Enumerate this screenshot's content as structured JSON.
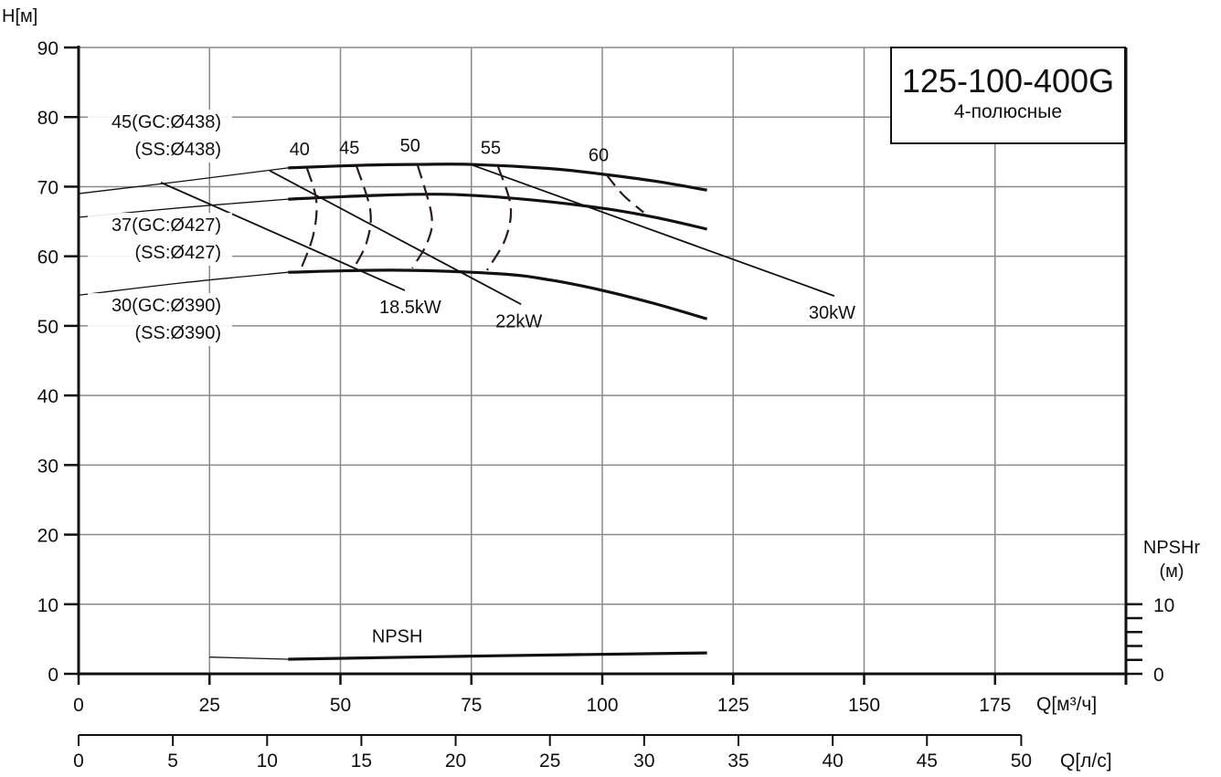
{
  "chart_data": {
    "type": "line",
    "title": "125-100-400G",
    "subtitle": "4-полюсные",
    "ylabel": "H[м]",
    "xlabel": "Q[м³/ч]",
    "x2label": "Q[л/с]",
    "y2label_line1": "NPSHr",
    "y2label_line2": "(м)",
    "xlim": [
      0,
      200
    ],
    "ylim": [
      0,
      90
    ],
    "x2lim": [
      0,
      50
    ],
    "y2lim": [
      0,
      10
    ],
    "grid": true,
    "x_ticks": [
      "0",
      "25",
      "50",
      "75",
      "100",
      "125",
      "150",
      "175"
    ],
    "y_ticks": [
      "0",
      "10",
      "20",
      "30",
      "40",
      "50",
      "60",
      "70",
      "80",
      "90"
    ],
    "x2_ticks": [
      "0",
      "5",
      "10",
      "15",
      "20",
      "25",
      "30",
      "35",
      "40",
      "45",
      "50"
    ],
    "y2_ticks": [
      "0",
      "10"
    ],
    "head_curves": [
      {
        "name": "45(GC:Ø438)",
        "name2": "(SS:Ø438)",
        "extension": [
          [
            0,
            69
          ],
          [
            20,
            70.8
          ],
          [
            40,
            72.7
          ]
        ],
        "points": [
          [
            40,
            72.7
          ],
          [
            55,
            73.1
          ],
          [
            65,
            73.2
          ],
          [
            75,
            73.2
          ],
          [
            90,
            72.6
          ],
          [
            100,
            71.8
          ],
          [
            110,
            70.8
          ],
          [
            120,
            69.5
          ]
        ]
      },
      {
        "name": "37(GC:Ø427)",
        "name2": "(SS:Ø427)",
        "extension": [
          [
            0,
            65.6
          ],
          [
            20,
            67
          ],
          [
            40,
            68.2
          ]
        ],
        "points": [
          [
            40,
            68.2
          ],
          [
            55,
            68.7
          ],
          [
            70,
            68.9
          ],
          [
            85,
            68.2
          ],
          [
            100,
            66.9
          ],
          [
            110,
            65.6
          ],
          [
            120,
            63.9
          ]
        ]
      },
      {
        "name": "30(GC:Ø390)",
        "name2": "(SS:Ø390)",
        "extension": [
          [
            0,
            54.4
          ],
          [
            20,
            56.2
          ],
          [
            40,
            57.7
          ]
        ],
        "points": [
          [
            40,
            57.7
          ],
          [
            60,
            58
          ],
          [
            80,
            57.5
          ],
          [
            90,
            56.6
          ],
          [
            100,
            55.1
          ],
          [
            110,
            53.2
          ],
          [
            120,
            51
          ]
        ]
      }
    ],
    "power_lines": [
      {
        "name": "18.5kW",
        "points": [
          [
            15.7,
            70.6
          ],
          [
            62.3,
            55.1
          ]
        ]
      },
      {
        "name": "22kW",
        "points": [
          [
            36.5,
            72.3
          ],
          [
            84.5,
            53.1
          ]
        ]
      },
      {
        "name": "30kW",
        "points": [
          [
            75.2,
            73.1
          ],
          [
            144.3,
            54.3
          ]
        ]
      }
    ],
    "efficiency_curves": [
      {
        "name": "40",
        "points": [
          [
            43.6,
            72.7
          ],
          [
            45.4,
            68
          ],
          [
            44.8,
            63
          ],
          [
            42.2,
            57.7
          ]
        ]
      },
      {
        "name": "45",
        "points": [
          [
            53.1,
            72.9
          ],
          [
            55.7,
            66.6
          ],
          [
            55,
            62
          ],
          [
            52.4,
            58.1
          ]
        ]
      },
      {
        "name": "50",
        "points": [
          [
            64.7,
            73.2
          ],
          [
            67.4,
            65.9
          ],
          [
            66.6,
            62
          ],
          [
            63.7,
            58.3
          ]
        ]
      },
      {
        "name": "55",
        "points": [
          [
            80.1,
            72.9
          ],
          [
            82.5,
            67.2
          ],
          [
            81.5,
            62.5
          ],
          [
            78,
            58
          ]
        ]
      },
      {
        "name": "60",
        "points": [
          [
            100.7,
            71.8
          ],
          [
            104,
            68.8
          ],
          [
            107.9,
            66.3
          ]
        ]
      }
    ],
    "npsh_curve": {
      "name": "NPSH",
      "extension": [
        [
          25,
          2.4
        ],
        [
          40,
          2.1
        ]
      ],
      "points": [
        [
          40,
          2.1
        ],
        [
          80,
          2.6
        ],
        [
          120,
          3.0
        ]
      ]
    }
  }
}
